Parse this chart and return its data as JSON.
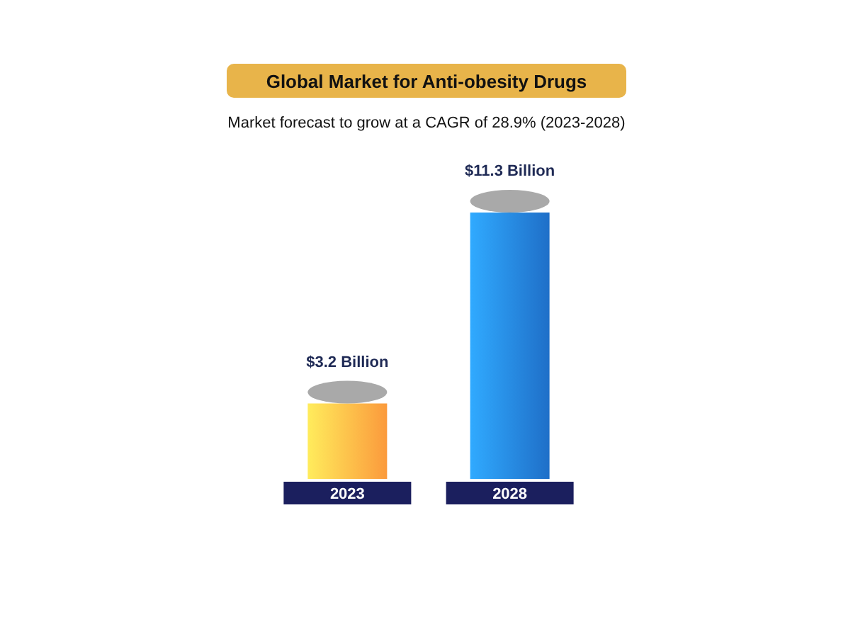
{
  "chart_data": {
    "type": "bar",
    "title": "Global Market for Anti-obesity Drugs",
    "subtitle": "Market forecast to grow at a CAGR of 28.9% (2023-2028)",
    "categories": [
      "2023",
      "2028"
    ],
    "values": [
      3.2,
      11.3
    ],
    "colors": [
      "#fb9a3c",
      "#1f6fc8"
    ],
    "value_labels": [
      "$3.2 Billion",
      "$11.3 Billion"
    ]
  }
}
